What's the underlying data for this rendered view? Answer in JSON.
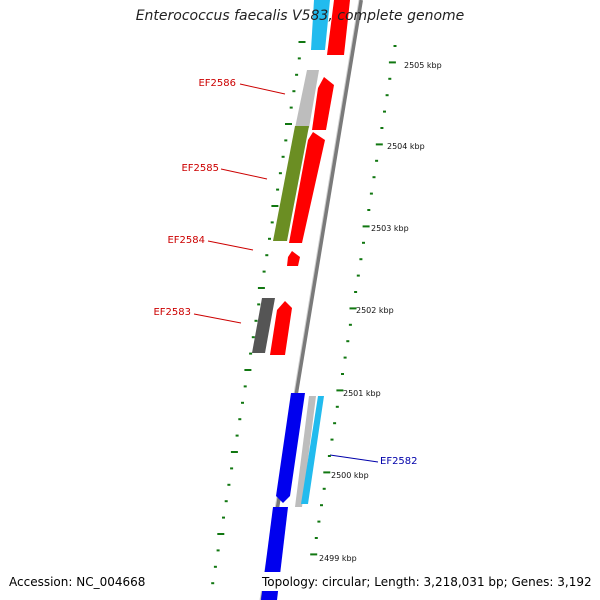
{
  "title": "Enterococcus faecalis V583, complete genome",
  "accession": "Accession: NC_004668",
  "topology": "Topology: circular; Length: 3,218,031 bp; Genes: 3,192",
  "colors": {
    "backbone": "#7a7a7a",
    "forward_cds": "#ff0000",
    "reverse_cds": "#0000ee",
    "blast_cyan": "#22bbee",
    "gray_feature": "#bdbdbd",
    "olive_feature": "#6b8e23",
    "dark_gray_feature": "#555555",
    "tick": "#117711",
    "red_label": "#cc0000",
    "blue_label": "#0000aa"
  },
  "scale_labels": [
    "2505 kbp",
    "2504 kbp",
    "2503 kbp",
    "2502 kbp",
    "2501 kbp",
    "2500 kbp",
    "2499 kbp"
  ],
  "gene_labels": [
    {
      "text": "EF2586",
      "color": "red"
    },
    {
      "text": "EF2585",
      "color": "red"
    },
    {
      "text": "EF2584",
      "color": "red"
    },
    {
      "text": "EF2583",
      "color": "red"
    },
    {
      "text": "EF2582",
      "color": "blue"
    }
  ]
}
